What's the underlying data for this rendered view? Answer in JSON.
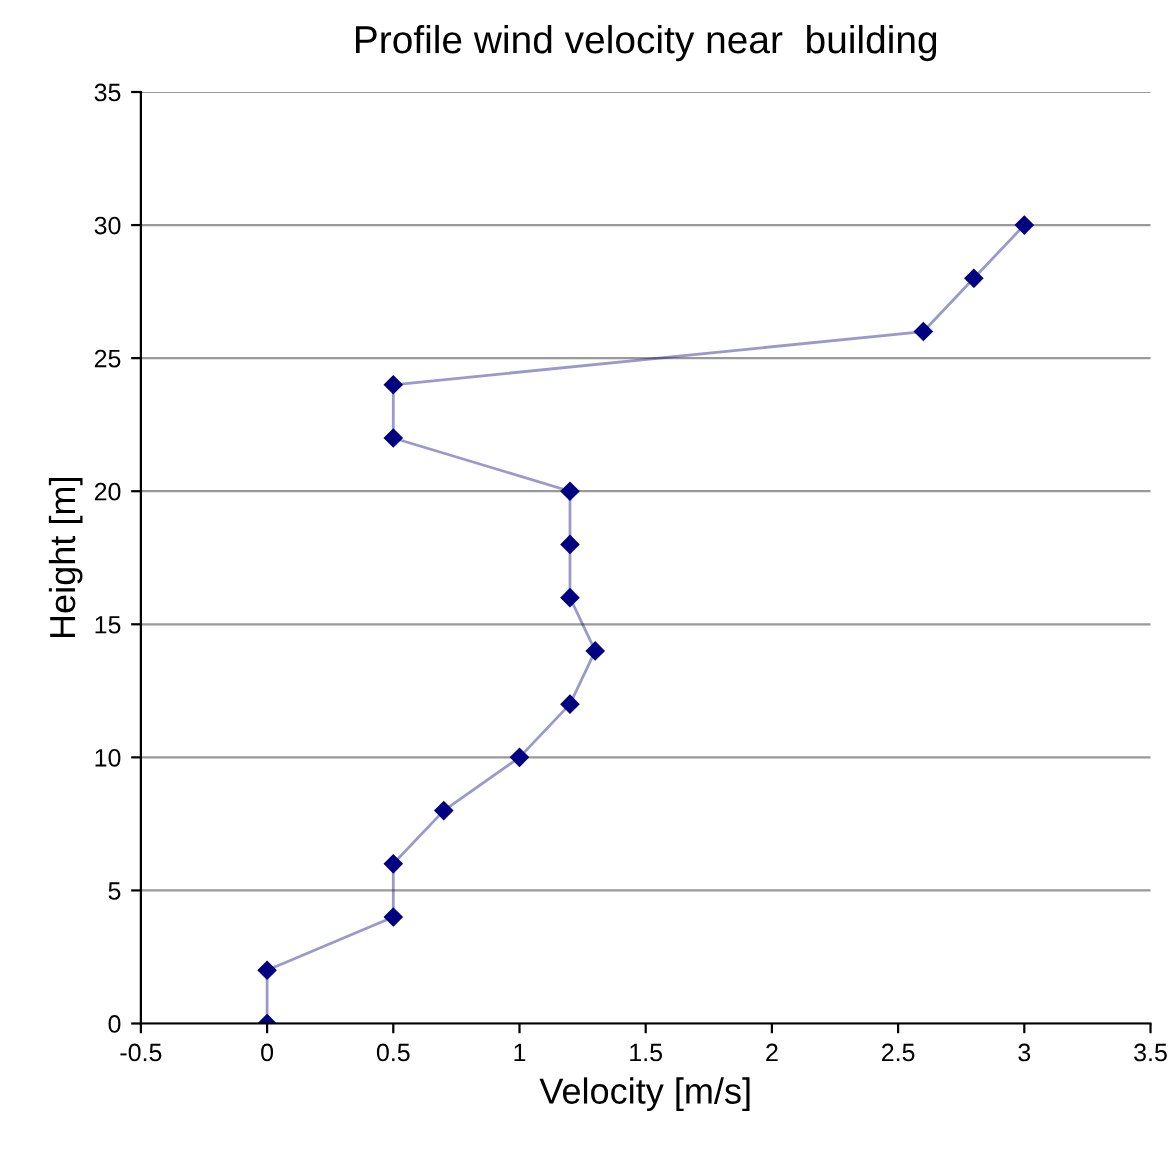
{
  "chart_data": {
    "type": "line",
    "title": "Profile wind velocity near  building",
    "xlabel": "Velocity [m/s]",
    "ylabel": "Height [m]",
    "series": [
      {
        "color": "#000080",
        "x": [
          0,
          0,
          0.5,
          0.5,
          0.7,
          1,
          1.2,
          1.3,
          1.2,
          1.2,
          1.2,
          0.5,
          0.5,
          2.6,
          2.8,
          3
        ],
        "values": [
          0,
          2,
          4,
          6,
          8,
          10,
          12,
          14,
          16,
          18,
          20,
          22,
          24,
          26,
          28,
          30
        ]
      }
    ],
    "xlim": [
      -0.5,
      3.5
    ],
    "xticks": [
      -0.5,
      0,
      0.5,
      1,
      1.5,
      2,
      2.5,
      3,
      3.5
    ],
    "ylim": [
      0,
      35
    ],
    "yticks": [
      0,
      5,
      10,
      15,
      20,
      25,
      30,
      35
    ],
    "grid": "y",
    "marker": "diamond",
    "line_style": "solid",
    "legend": false
  }
}
